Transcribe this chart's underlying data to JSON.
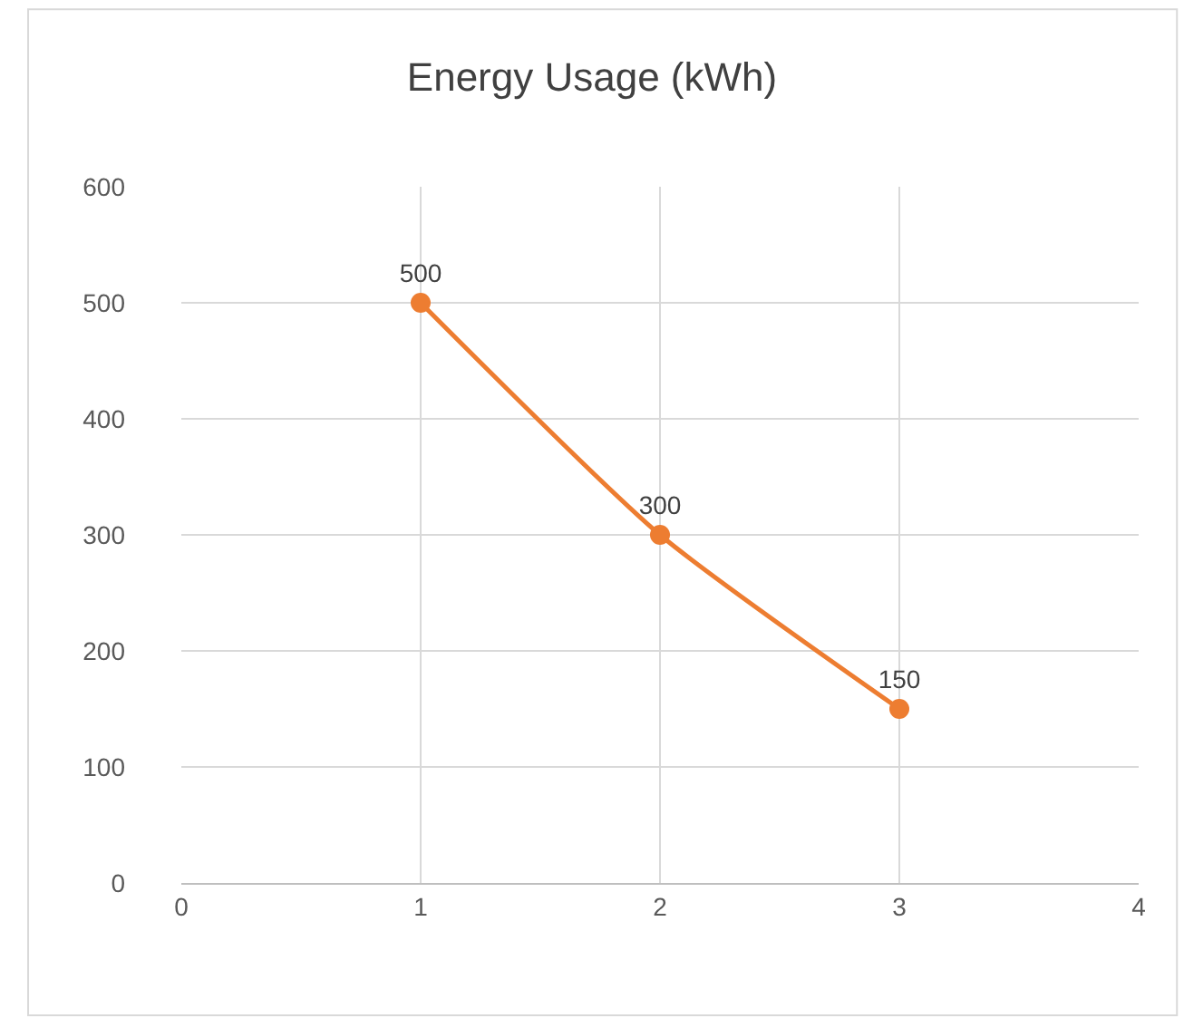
{
  "chart_data": {
    "type": "line",
    "title": "Energy Usage (kWh)",
    "x": [
      1,
      2,
      3
    ],
    "series": [
      {
        "color": "#ed7d31",
        "values": [
          500,
          300,
          150
        ]
      }
    ],
    "xlim": [
      0,
      4
    ],
    "xticks": [
      0,
      1,
      2,
      3,
      4
    ],
    "ylim": [
      0,
      600
    ],
    "yticks": [
      0,
      100,
      200,
      300,
      400,
      500,
      600
    ],
    "grid": true,
    "marker": "circle",
    "line_style": "solid",
    "data_labels": true
  }
}
